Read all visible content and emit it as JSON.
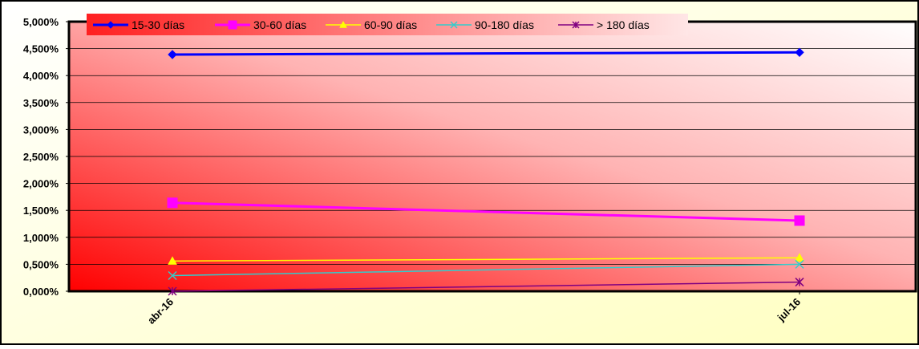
{
  "chart_data": {
    "type": "line",
    "title": "",
    "xlabel": "",
    "ylabel": "",
    "categories": [
      "abr-16",
      "jul-16"
    ],
    "ylim": [
      0,
      5
    ],
    "y_ticks": [
      "0,000%",
      "0,500%",
      "1,000%",
      "1,500%",
      "2,000%",
      "2,500%",
      "3,000%",
      "3,500%",
      "4,000%",
      "4,500%",
      "5,000%"
    ],
    "grid": true,
    "legend_position": "top",
    "series": [
      {
        "name": "15-30 días",
        "values": [
          4.39,
          4.43
        ],
        "color": "#0000ff",
        "marker": "diamond"
      },
      {
        "name": "30-60 días",
        "values": [
          1.64,
          1.31
        ],
        "color": "#ff00ff",
        "marker": "square"
      },
      {
        "name": "60-90 días",
        "values": [
          0.56,
          0.62
        ],
        "color": "#ffff00",
        "marker": "triangle"
      },
      {
        "name": "90-180 días",
        "values": [
          0.29,
          0.5
        ],
        "color": "#33cccc",
        "marker": "x"
      },
      {
        "name": "> 180 días",
        "values": [
          0.0,
          0.17
        ],
        "color": "#800080",
        "marker": "star"
      }
    ],
    "colors": {
      "page_background": "#ffffcc",
      "plot_gradient_start": "#ff0000",
      "plot_gradient_end": "#ffffff",
      "frame": "#000000"
    }
  }
}
